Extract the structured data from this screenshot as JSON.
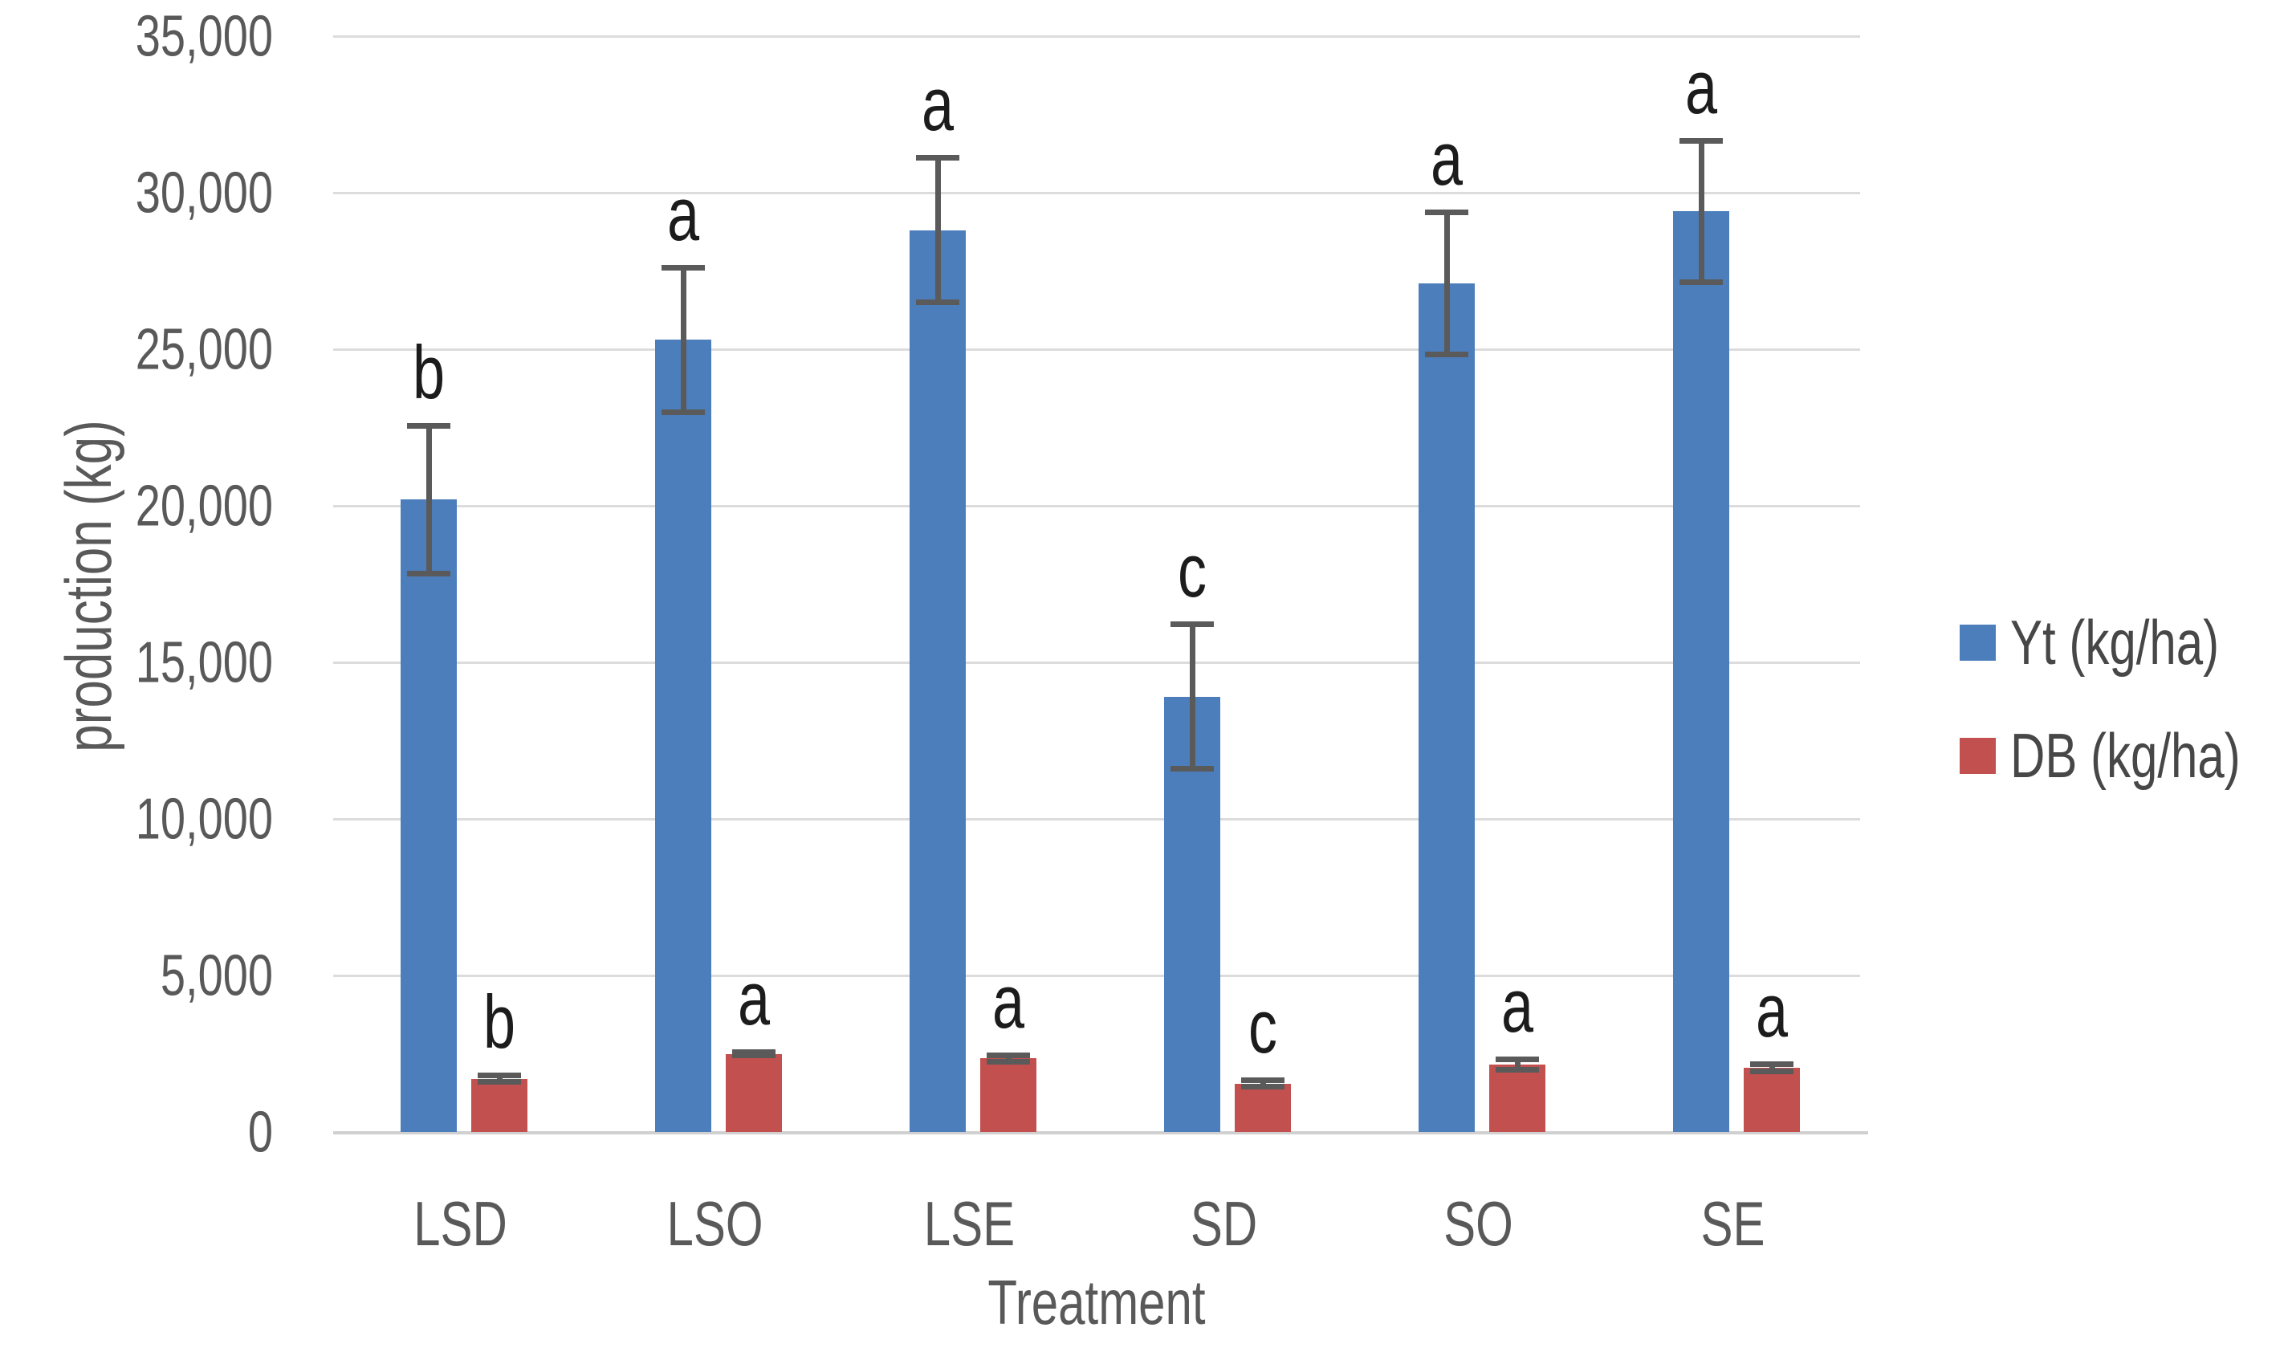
{
  "chart_data": {
    "type": "bar",
    "title": "",
    "xlabel": "Treatment",
    "ylabel": "production (kg)",
    "ylim": [
      0,
      35000
    ],
    "ytick_step": 5000,
    "ytick_labels": [
      "0",
      "5,000",
      "10,000",
      "15,000",
      "20,000",
      "25,000",
      "30,000",
      "35,000"
    ],
    "grid": true,
    "legend_position": "right",
    "categories": [
      "LSD",
      "LSO",
      "LSE",
      "SD",
      "SO",
      "SE"
    ],
    "series": [
      {
        "name": "Yt (kg/ha)",
        "color": "#4d7ebc",
        "values": [
          20200,
          25300,
          28800,
          13900,
          27100,
          29400
        ],
        "error_bars": [
          2450,
          2400,
          2400,
          2400,
          2350,
          2350
        ],
        "sig_letters": [
          "b",
          "a",
          "a",
          "c",
          "a",
          "a"
        ]
      },
      {
        "name": "DB (kg/ha)",
        "color": "#c1504e",
        "values": [
          1700,
          2500,
          2350,
          1550,
          2150,
          2050
        ],
        "error_bars": [
          200,
          150,
          200,
          200,
          250,
          200
        ],
        "sig_letters": [
          "b",
          "a",
          "a",
          "c",
          "a",
          "a"
        ]
      }
    ]
  },
  "colors": {
    "background": "#ffffff",
    "gridline": "#dcdcdc",
    "axis_line": "#d0d0d0",
    "error_bar": "#5a5a5a",
    "axis_text": "#595959",
    "letter_text": "#1c1c1c",
    "legend_text": "#474747"
  }
}
